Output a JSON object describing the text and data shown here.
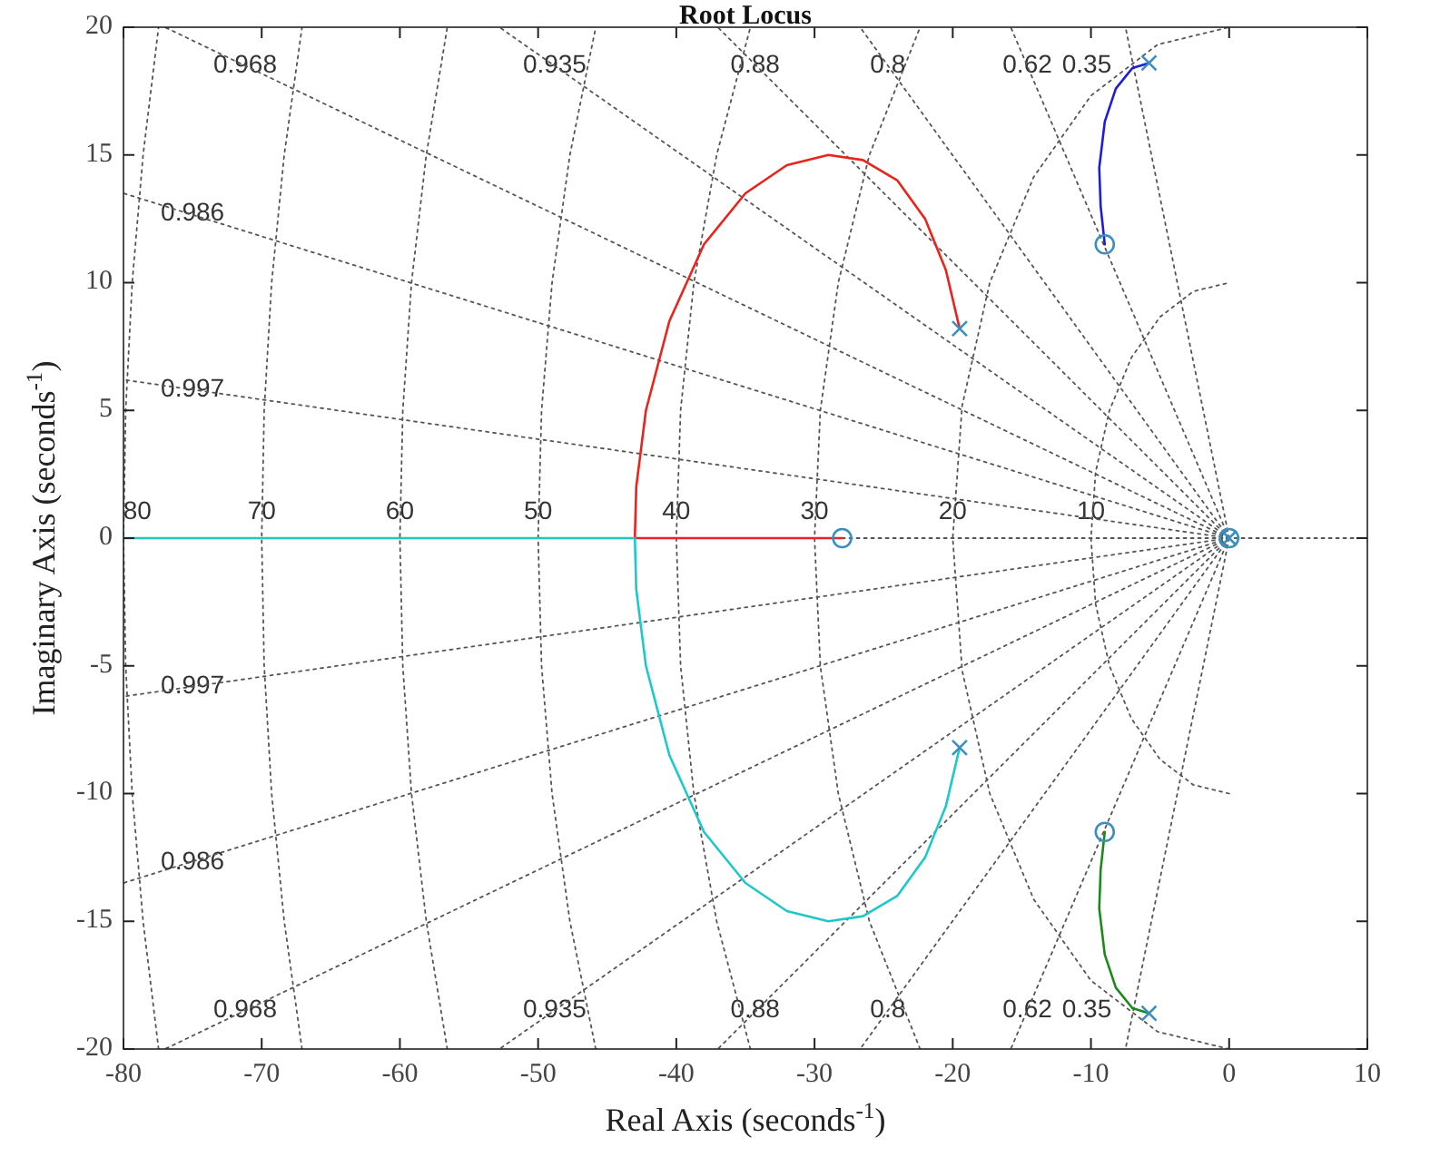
{
  "chart_data": {
    "type": "line",
    "title": "Root Locus",
    "xlabel": "Real Axis (seconds$^{-1}$)",
    "ylabel": "Imaginary Axis (seconds$^{-1}$)",
    "xlim": [
      -80,
      10
    ],
    "xticks": [
      -80,
      -70,
      -60,
      -50,
      -40,
      -30,
      -20,
      -10,
      0,
      10
    ],
    "ylim": [
      -20,
      20
    ],
    "yticks": [
      -20,
      -15,
      -10,
      -5,
      0,
      5,
      10,
      15,
      20
    ],
    "line_style": "solid",
    "series": [
      {
        "color": "#555555",
        "line_style": "dotted",
        "x": [
          -28,
          10
        ],
        "values": [
          0,
          0
        ]
      },
      {
        "color": "#555555",
        "line_style": "dotted",
        "x": [
          0,
          -80
        ],
        "values": [
          0,
          6.2
        ]
      },
      {
        "color": "#555555",
        "line_style": "dotted",
        "x": [
          0,
          -80
        ],
        "values": [
          0,
          13.5
        ]
      },
      {
        "color": "#555555",
        "line_style": "dotted",
        "x": [
          0,
          -77
        ],
        "values": [
          0,
          20
        ]
      },
      {
        "color": "#555555",
        "line_style": "dotted",
        "x": [
          0,
          -52.8
        ],
        "values": [
          0,
          20
        ]
      },
      {
        "color": "#555555",
        "line_style": "dotted",
        "x": [
          0,
          -37
        ],
        "values": [
          0,
          20
        ]
      },
      {
        "color": "#555555",
        "line_style": "dotted",
        "x": [
          0,
          -26.7
        ],
        "values": [
          0,
          20
        ]
      },
      {
        "color": "#555555",
        "line_style": "dotted",
        "x": [
          0,
          -15.8
        ],
        "values": [
          0,
          20
        ]
      },
      {
        "color": "#555555",
        "line_style": "dotted",
        "x": [
          0,
          -7.5
        ],
        "values": [
          0,
          20
        ]
      },
      {
        "color": "#555555",
        "line_style": "dotted",
        "x": [
          0,
          -80
        ],
        "values": [
          0,
          -6.2
        ]
      },
      {
        "color": "#555555",
        "line_style": "dotted",
        "x": [
          0,
          -80
        ],
        "values": [
          0,
          -13.5
        ]
      },
      {
        "color": "#555555",
        "line_style": "dotted",
        "x": [
          0,
          -77
        ],
        "values": [
          0,
          -20
        ]
      },
      {
        "color": "#555555",
        "line_style": "dotted",
        "x": [
          0,
          -52.8
        ],
        "values": [
          0,
          -20
        ]
      },
      {
        "color": "#555555",
        "line_style": "dotted",
        "x": [
          0,
          -37
        ],
        "values": [
          0,
          -20
        ]
      },
      {
        "color": "#555555",
        "line_style": "dotted",
        "x": [
          0,
          -26.7
        ],
        "values": [
          0,
          -20
        ]
      },
      {
        "color": "#555555",
        "line_style": "dotted",
        "x": [
          0,
          -15.8
        ],
        "values": [
          0,
          -20
        ]
      },
      {
        "color": "#555555",
        "line_style": "dotted",
        "x": [
          0,
          -7.5
        ],
        "values": [
          0,
          -20
        ]
      },
      {
        "color": "#555555",
        "line_style": "dotted",
        "x": [
          0,
          -2.59,
          -5,
          -7.07,
          -8.66,
          -9.66,
          -10,
          -9.66,
          -8.66,
          -7.07,
          -5,
          -2.59,
          0
        ],
        "values": [
          -10,
          -9.66,
          -8.66,
          -7.07,
          -5,
          -2.59,
          0,
          2.59,
          5,
          7.07,
          8.66,
          9.66,
          10
        ]
      },
      {
        "color": "#555555",
        "line_style": "dotted",
        "x": [
          0,
          -5.18,
          -10,
          -14.14,
          -17.32,
          -19.32,
          -20,
          -19.32,
          -17.32,
          -14.14,
          -10,
          -5.18,
          0
        ],
        "values": [
          -20,
          -19.32,
          -17.32,
          -14.14,
          -10,
          -5.18,
          0,
          5.18,
          10,
          14.14,
          17.32,
          19.32,
          20
        ]
      },
      {
        "color": "#555555",
        "line_style": "dotted",
        "x": [
          -22.36,
          -26.03,
          -28.28,
          -29.58,
          -30,
          -29.58,
          -28.28,
          -26.03,
          -22.36
        ],
        "values": [
          -20,
          -15,
          -10,
          -5,
          0,
          5,
          10,
          15,
          20
        ]
      },
      {
        "color": "#555555",
        "line_style": "dotted",
        "x": [
          -34.64,
          -37.08,
          -38.73,
          -39.69,
          -40,
          -39.69,
          -38.73,
          -37.08,
          -34.64
        ],
        "values": [
          -20,
          -15,
          -10,
          -5,
          0,
          5,
          10,
          15,
          20
        ]
      },
      {
        "color": "#555555",
        "line_style": "dotted",
        "x": [
          -45.83,
          -47.7,
          -48.99,
          -49.75,
          -50,
          -49.75,
          -48.99,
          -47.7,
          -45.83
        ],
        "values": [
          -20,
          -15,
          -10,
          -5,
          0,
          5,
          10,
          15,
          20
        ]
      },
      {
        "color": "#555555",
        "line_style": "dotted",
        "x": [
          -56.57,
          -58.09,
          -59.16,
          -59.79,
          -60,
          -59.79,
          -59.16,
          -58.09,
          -56.57
        ],
        "values": [
          -20,
          -15,
          -10,
          -5,
          0,
          5,
          10,
          15,
          20
        ]
      },
      {
        "color": "#555555",
        "line_style": "dotted",
        "x": [
          -67.08,
          -68.37,
          -69.28,
          -69.82,
          -70,
          -69.82,
          -69.28,
          -68.37,
          -67.08
        ],
        "values": [
          -20,
          -15,
          -10,
          -5,
          0,
          5,
          10,
          15,
          20
        ]
      },
      {
        "color": "#555555",
        "line_style": "dotted",
        "x": [
          -77.46,
          -78.58,
          -79.37,
          -79.84,
          -80,
          -79.84,
          -79.37,
          -78.58,
          -77.46
        ],
        "values": [
          -20,
          -15,
          -10,
          -5,
          0,
          5,
          10,
          15,
          20
        ]
      },
      {
        "color": "#e8241c",
        "x": [
          -19.5,
          -20.5,
          -22,
          -24,
          -26.5,
          -29,
          -32,
          -35,
          -38,
          -40.5,
          -42.2,
          -42.9,
          -43,
          -35,
          -28
        ],
        "values": [
          8.2,
          10.5,
          12.5,
          14,
          14.8,
          15,
          14.6,
          13.5,
          11.5,
          8.5,
          5,
          2,
          0,
          0,
          0
        ]
      },
      {
        "color": "#1fc8c8",
        "x": [
          -19.5,
          -20.5,
          -22,
          -24,
          -26.5,
          -29,
          -32,
          -35,
          -38,
          -40.5,
          -42.2,
          -42.9,
          -43,
          -60,
          -80
        ],
        "values": [
          -8.2,
          -10.5,
          -12.5,
          -14,
          -14.8,
          -15,
          -14.6,
          -13.5,
          -11.5,
          -8.5,
          -5,
          -2,
          0,
          0,
          0
        ]
      },
      {
        "color": "#1c1ce0",
        "x": [
          -5.8,
          -7,
          -8.2,
          -9,
          -9.4,
          -9.3,
          -9
        ],
        "values": [
          18.6,
          18.4,
          17.6,
          16.3,
          14.5,
          13,
          11.5
        ]
      },
      {
        "color": "#1a8a1a",
        "x": [
          -5.8,
          -7,
          -8.2,
          -9,
          -9.4,
          -9.3,
          -9
        ],
        "values": [
          -18.6,
          -18.4,
          -17.6,
          -16.3,
          -14.5,
          -13,
          -11.5
        ]
      },
      {
        "type": "scatter",
        "marker": "cross",
        "color": "#3a8fc0",
        "x": [
          -19.5,
          -19.5,
          -5.8,
          -5.8,
          0
        ],
        "values": [
          8.2,
          -8.2,
          18.6,
          -18.6,
          0
        ]
      },
      {
        "type": "scatter",
        "marker": "circle",
        "color": "#3a8fc0",
        "x": [
          -28,
          -9,
          -9,
          0
        ],
        "values": [
          0,
          11.5,
          -11.5,
          0
        ]
      }
    ],
    "annotations": [
      "0.968",
      "0.935",
      "0.88",
      "0.8",
      "0.62",
      "0.35",
      "0.986",
      "0.997",
      "0.997",
      "0.986",
      "0.968",
      "0.935",
      "0.88",
      "0.8",
      "0.62",
      "0.35",
      "80",
      "70",
      "60",
      "50",
      "40",
      "30",
      "20",
      "10"
    ]
  }
}
